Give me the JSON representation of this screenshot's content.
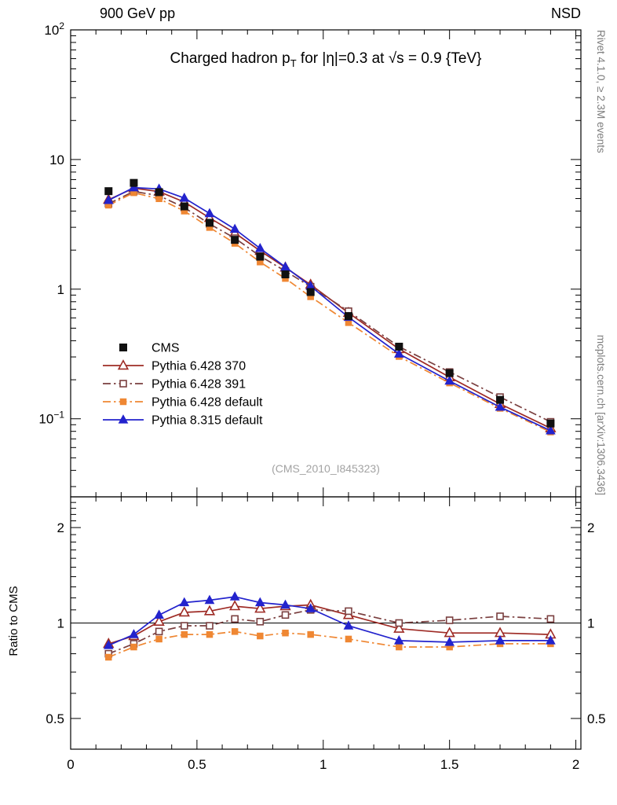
{
  "header": {
    "left": "900 GeV pp",
    "right": "NSD"
  },
  "title_parts": {
    "pre": "Charged hadron p",
    "sub": "T",
    "post": " for |η|=0.3 at √s = 0.9 {TeV}"
  },
  "side_notes": {
    "top": "Rivet 4.1.0, ≥ 2.3M events",
    "bottom": "mcplots.cern.ch [arXiv:1306.3436]"
  },
  "watermark": "(CMS_2010_I845323)",
  "chart_data": {
    "type": "line",
    "title": "Charged hadron pT for |η|=0.3 at √s = 0.9 {TeV}",
    "xlabel": "",
    "ylabel": "",
    "legend_position": "inside-left-bottom",
    "x_axis": {
      "min": 0,
      "max": 2.02,
      "major_ticks": [
        0,
        0.5,
        1,
        1.5,
        2
      ],
      "minor_step": 0.1
    },
    "y_axis": {
      "scale": "log",
      "min": 0.025,
      "max": 100,
      "decade_labels": [
        "10^2",
        "10",
        "1",
        "10^-1"
      ]
    },
    "ratio_axis": {
      "scale": "log",
      "min": 0.4,
      "max": 2.5,
      "ticks": [
        0.5,
        1,
        2
      ],
      "label": "Ratio to CMS"
    },
    "x": [
      0.15,
      0.25,
      0.35,
      0.45,
      0.55,
      0.65,
      0.75,
      0.85,
      0.95,
      1.1,
      1.3,
      1.5,
      1.7,
      1.9
    ],
    "series": [
      {
        "name": "CMS",
        "color": "#111111",
        "marker": "square",
        "filled": true,
        "line": "none",
        "marker_size": 9,
        "values": [
          5.7,
          6.6,
          5.6,
          4.35,
          3.25,
          2.4,
          1.78,
          1.3,
          0.95,
          0.62,
          0.36,
          0.225,
          0.14,
          0.092
        ]
      },
      {
        "name": "Pythia 6.428 370",
        "color": "#9e2b25",
        "marker": "triangle",
        "filled": false,
        "line": "solid",
        "marker_size": 10,
        "ratio_to_cms": [
          0.86,
          0.91,
          1.01,
          1.08,
          1.09,
          1.13,
          1.11,
          1.13,
          1.14,
          1.06,
          0.96,
          0.93,
          0.93,
          0.92
        ]
      },
      {
        "name": "Pythia 6.428 391",
        "color": "#7a3f3f",
        "marker": "square",
        "filled": false,
        "line": "dashdot",
        "marker_size": 8,
        "ratio_to_cms": [
          0.8,
          0.86,
          0.94,
          0.98,
          0.98,
          1.03,
          1.01,
          1.06,
          1.1,
          1.09,
          1.0,
          1.02,
          1.05,
          1.03
        ]
      },
      {
        "name": "Pythia 6.428 default",
        "color": "#ef8733",
        "marker": "square",
        "filled": true,
        "line": "dashdot",
        "marker_size": 7.5,
        "ratio_to_cms": [
          0.78,
          0.84,
          0.89,
          0.92,
          0.92,
          0.94,
          0.91,
          0.93,
          0.92,
          0.89,
          0.84,
          0.84,
          0.86,
          0.86
        ]
      },
      {
        "name": "Pythia 8.315 default",
        "color": "#2323cd",
        "marker": "triangle",
        "filled": true,
        "line": "solid",
        "marker_size": 9.5,
        "ratio_to_cms": [
          0.85,
          0.92,
          1.06,
          1.16,
          1.18,
          1.21,
          1.16,
          1.14,
          1.11,
          0.98,
          0.88,
          0.87,
          0.88,
          0.88
        ]
      }
    ]
  }
}
